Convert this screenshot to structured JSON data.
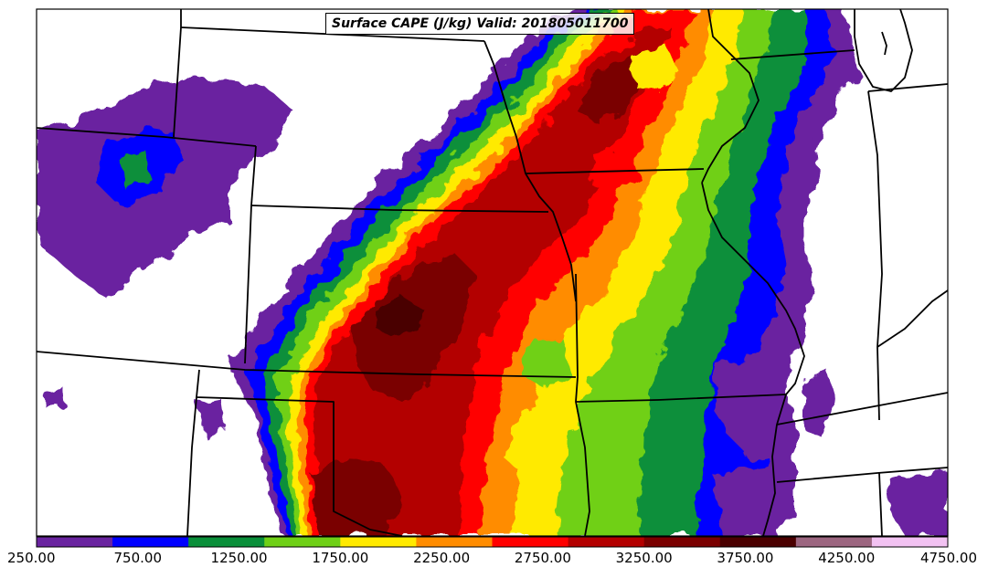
{
  "map": {
    "title": "Surface CAPE (J/kg) Valid: 201805011700"
  },
  "colorbar": {
    "min": 250,
    "max": 4750,
    "step": 250,
    "tick_labels": [
      "250.00",
      "750.00",
      "1250.00",
      "1750.00",
      "2250.00",
      "2750.00",
      "3250.00",
      "3750.00",
      "4250.00",
      "4750.00"
    ],
    "colors": [
      "#6a24a0",
      "#0000ff",
      "#0a8f3a",
      "#6fd016",
      "#ffea00",
      "#ff8c00",
      "#ff0000",
      "#b30000",
      "#7a0000",
      "#4a0000",
      "#9c6680",
      "#f2c2f2"
    ]
  }
}
